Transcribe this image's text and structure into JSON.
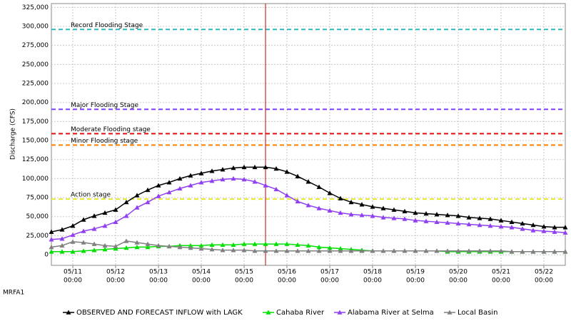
{
  "chart_data": {
    "type": "line",
    "y_label": "Discharge (CFS)",
    "station": "MRFA1",
    "x": [
      "05/10 12:00",
      "05/10 18:00",
      "05/11 00:00",
      "05/11 06:00",
      "05/11 12:00",
      "05/11 18:00",
      "05/12 00:00",
      "05/12 06:00",
      "05/12 12:00",
      "05/12 18:00",
      "05/13 00:00",
      "05/13 06:00",
      "05/13 12:00",
      "05/13 18:00",
      "05/14 00:00",
      "05/14 06:00",
      "05/14 12:00",
      "05/14 18:00",
      "05/15 00:00",
      "05/15 06:00",
      "05/15 12:00",
      "05/15 18:00",
      "05/16 00:00",
      "05/16 06:00",
      "05/16 12:00",
      "05/16 18:00",
      "05/17 00:00",
      "05/17 06:00",
      "05/17 12:00",
      "05/17 18:00",
      "05/18 00:00",
      "05/18 06:00",
      "05/18 12:00",
      "05/18 18:00",
      "05/19 00:00",
      "05/19 06:00",
      "05/19 12:00",
      "05/19 18:00",
      "05/20 00:00",
      "05/20 06:00",
      "05/20 12:00",
      "05/20 18:00",
      "05/21 00:00",
      "05/21 06:00",
      "05/21 12:00",
      "05/21 18:00",
      "05/22 00:00",
      "05/22 06:00",
      "05/22 12:00"
    ],
    "series": [
      {
        "name": "OBSERVED AND FORECAST INFLOW with LAGK",
        "color": "#000000",
        "values": [
          30000,
          33000,
          38000,
          46000,
          51000,
          55000,
          59000,
          69000,
          78000,
          85000,
          91000,
          95000,
          100000,
          104000,
          107000,
          110000,
          112000,
          114000,
          115000,
          115000,
          115000,
          113000,
          109000,
          103000,
          96000,
          89000,
          81000,
          74000,
          69000,
          66000,
          63000,
          61000,
          59000,
          57000,
          55000,
          54000,
          53000,
          52000,
          51000,
          49000,
          48000,
          47000,
          45000,
          43000,
          41000,
          39000,
          37000,
          36000,
          36000
        ]
      },
      {
        "name": "Cahaba River",
        "color": "#00e000",
        "values": [
          4000,
          4000,
          4000,
          5000,
          6000,
          7000,
          8000,
          9000,
          10000,
          10000,
          11000,
          11000,
          12000,
          12000,
          12000,
          13000,
          13000,
          13000,
          14000,
          14000,
          14000,
          14000,
          14000,
          13000,
          12000,
          10000,
          9000,
          8000,
          7000,
          6000,
          5000,
          5000,
          5000,
          5000,
          5000,
          5000,
          5000,
          4000,
          4000,
          4000,
          4000,
          4000,
          4000,
          4000,
          4000,
          4000,
          4000,
          4000,
          4000
        ]
      },
      {
        "name": "Alabama River at Selma",
        "color": "#9040f0",
        "values": [
          20000,
          21000,
          26000,
          31000,
          34000,
          38000,
          43000,
          51000,
          62000,
          69000,
          77000,
          82000,
          87000,
          91000,
          95000,
          97000,
          99000,
          100000,
          99000,
          96000,
          91000,
          86000,
          78000,
          70000,
          65000,
          61000,
          58000,
          55000,
          53000,
          52000,
          51000,
          49000,
          48000,
          47000,
          45000,
          44000,
          43000,
          42000,
          41000,
          40000,
          39000,
          38000,
          37000,
          36000,
          34000,
          32000,
          31000,
          30000,
          29000
        ]
      },
      {
        "name": "Local Basin",
        "color": "#808080",
        "values": [
          10000,
          12000,
          17000,
          16000,
          14000,
          12000,
          11000,
          18000,
          16000,
          14000,
          12000,
          11000,
          10000,
          9000,
          8000,
          7000,
          6000,
          6000,
          6000,
          5000,
          5000,
          5000,
          5000,
          5000,
          5000,
          5000,
          5000,
          5000,
          5000,
          5000,
          5000,
          5000,
          5000,
          5000,
          5000,
          5000,
          5000,
          5000,
          5000,
          5000,
          5000,
          5000,
          5000,
          4000,
          4000,
          4000,
          4000,
          4000,
          4000
        ]
      }
    ],
    "thresholds": [
      {
        "label": "Record Flooding Stage",
        "value": 296000,
        "color": "#30b8b8"
      },
      {
        "label": "Major Flooding Stage",
        "value": 191000,
        "color": "#8040ff"
      },
      {
        "label": "Moderate Flooding stage",
        "value": 159000,
        "color": "#e01010"
      },
      {
        "label": "Minor Flooding stage",
        "value": 144000,
        "color": "#ff8000"
      },
      {
        "label": "Action stage",
        "value": 73000,
        "color": "#e8e830"
      }
    ],
    "current_time": "05/15 12:00",
    "xlim": [
      "05/10 12:00",
      "05/22 12:00"
    ],
    "xticks": [
      {
        "value": "05/11 00:00",
        "label": [
          "05/11",
          "00:00"
        ]
      },
      {
        "value": "05/12 00:00",
        "label": [
          "05/12",
          "00:00"
        ]
      },
      {
        "value": "05/13 00:00",
        "label": [
          "05/13",
          "00:00"
        ]
      },
      {
        "value": "05/14 00:00",
        "label": [
          "05/14",
          "00:00"
        ]
      },
      {
        "value": "05/15 00:00",
        "label": [
          "05/15",
          "00:00"
        ]
      },
      {
        "value": "05/16 00:00",
        "label": [
          "05/16",
          "00:00"
        ]
      },
      {
        "value": "05/17 00:00",
        "label": [
          "05/17",
          "00:00"
        ]
      },
      {
        "value": "05/18 00:00",
        "label": [
          "05/18",
          "00:00"
        ]
      },
      {
        "value": "05/19 00:00",
        "label": [
          "05/19",
          "00:00"
        ]
      },
      {
        "value": "05/20 00:00",
        "label": [
          "05/20",
          "00:00"
        ]
      },
      {
        "value": "05/21 00:00",
        "label": [
          "05/21",
          "00:00"
        ]
      },
      {
        "value": "05/22 00:00",
        "label": [
          "05/22",
          "00:00"
        ]
      }
    ],
    "ylim": [
      -14000,
      330000
    ],
    "yticks": [
      0,
      {
        "value": 25000,
        "label": "25,000"
      },
      {
        "value": 50000,
        "label": "50,000"
      },
      {
        "value": 75000,
        "label": "75,000"
      },
      {
        "value": 100000,
        "label": "100,000"
      },
      {
        "value": 125000,
        "label": "125,000"
      },
      {
        "value": 150000,
        "label": "150,000"
      },
      {
        "value": 175000,
        "label": "175,000"
      },
      {
        "value": 200000,
        "label": "200,000"
      },
      {
        "value": 225000,
        "label": "225,000"
      },
      {
        "value": 250000,
        "label": "250,000"
      },
      {
        "value": 275000,
        "label": "275,000"
      },
      {
        "value": 300000,
        "label": "300,000"
      },
      {
        "value": 325000,
        "label": "325,000"
      }
    ],
    "grid": true
  }
}
